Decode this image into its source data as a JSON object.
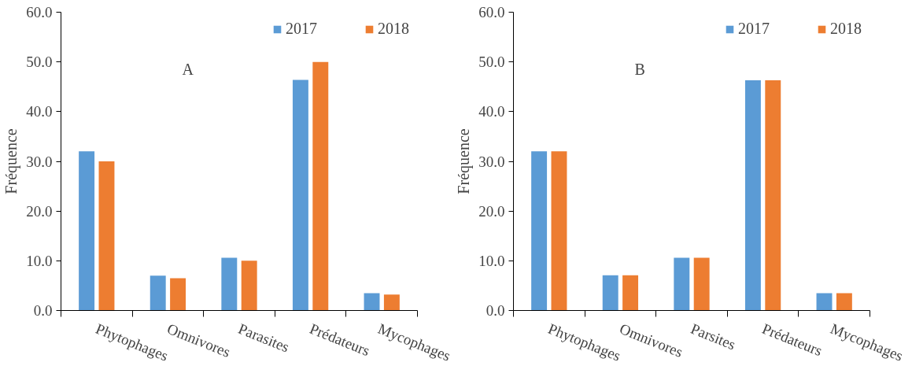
{
  "chart_data": [
    {
      "type": "bar",
      "ylabel": "Fréquence",
      "annotations": [
        "A"
      ],
      "categories": [
        "Phytophages",
        "Omnivores",
        "Parasites",
        "Prédateurs",
        "Mycophages"
      ],
      "series": [
        {
          "name": "2017",
          "color": "#5b9bd5",
          "values": [
            32.0,
            7.0,
            10.6,
            46.4,
            3.5
          ]
        },
        {
          "name": "2018",
          "color": "#ed7d31",
          "values": [
            30.0,
            6.5,
            10.0,
            50.0,
            3.2
          ]
        }
      ],
      "ylim": [
        0,
        60
      ],
      "yticks": [
        {
          "value": 0,
          "label": "0.0"
        },
        {
          "value": 10,
          "label": "10.0"
        },
        {
          "value": 20,
          "label": "20.0"
        },
        {
          "value": 30,
          "label": "30.0"
        },
        {
          "value": 40,
          "label": "40.0"
        },
        {
          "value": 50,
          "label": "50.0"
        },
        {
          "value": 60,
          "label": "60.0"
        }
      ],
      "grid": false,
      "legend": "top right"
    },
    {
      "type": "bar",
      "ylabel": "Fréquence",
      "annotations": [
        "B"
      ],
      "categories": [
        "Phytophages",
        "Omnivores",
        "Parsites",
        "Prédateurs",
        "Mycophages"
      ],
      "series": [
        {
          "name": "2017",
          "color": "#5b9bd5",
          "values": [
            32.0,
            7.1,
            10.6,
            46.3,
            3.5
          ]
        },
        {
          "name": "2018",
          "color": "#ed7d31",
          "values": [
            32.0,
            7.1,
            10.6,
            46.3,
            3.5
          ]
        }
      ],
      "ylim": [
        0,
        60
      ],
      "yticks": [
        {
          "value": 0,
          "label": "0.0"
        },
        {
          "value": 10,
          "label": "10.0"
        },
        {
          "value": 20,
          "label": "20.0"
        },
        {
          "value": 30,
          "label": "30.0"
        },
        {
          "value": 40,
          "label": "40.0"
        },
        {
          "value": 50,
          "label": "50.0"
        },
        {
          "value": 60,
          "label": "60.0"
        }
      ],
      "grid": false,
      "legend": "top right"
    }
  ]
}
